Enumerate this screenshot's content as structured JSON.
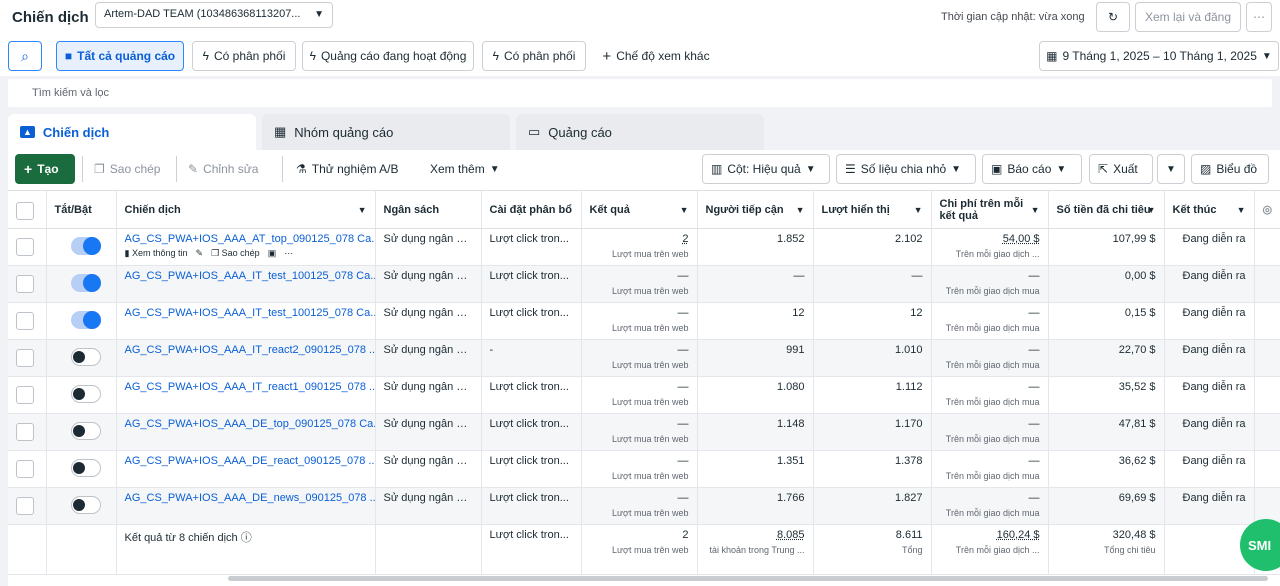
{
  "header": {
    "title": "Chiến dịch",
    "account": "Artem-DAD TEAM (103486368113207...",
    "updated": "Thời gian cập nhật: vừa xong",
    "review_label": "Xem lại và đăng"
  },
  "filters": {
    "all_ads": "Tất cả quảng cáo",
    "has_delivery_1": "Có phân phối",
    "active_ads": "Quảng cáo đang hoạt động",
    "has_delivery_2": "Có phân phối",
    "other_views": "Chế độ xem khác",
    "date_range": "9 Tháng 1, 2025 – 10 Tháng 1, 2025"
  },
  "search": {
    "placeholder": "Tìm kiếm và lọc"
  },
  "tabs": [
    {
      "label": "Chiến dịch"
    },
    {
      "label": "Nhóm quảng cáo"
    },
    {
      "label": "Quảng cáo"
    }
  ],
  "toolbar": {
    "create": "Tạo",
    "duplicate": "Sao chép",
    "edit": "Chỉnh sửa",
    "ab_test": "Thử nghiệm A/B",
    "more": "Xem thêm",
    "columns": "Cột: Hiệu quả",
    "breakdown": "Số liệu chia nhỏ",
    "reports": "Báo cáo",
    "export": "Xuất",
    "chart": "Biểu đồ"
  },
  "columns": [
    "Tắt/Bật",
    "Chiến dịch",
    "Ngân sách",
    "Cài đặt phân bổ",
    "Kết quả",
    "Người tiếp cận",
    "Lượt hiển thị",
    "Chi phí trên mỗi kết quả",
    "Số tiền đã chi tiêu",
    "Kết thúc"
  ],
  "row_actions": {
    "view": "Xem thông tin",
    "copy": "Sao chép"
  },
  "rows": [
    {
      "on": true,
      "name": "AG_CS_PWA+IOS_AAA_AT_top_090125_078 Ca...",
      "budget": "Sử dụng ngân sá...",
      "bid": "Lượt click tron...",
      "result": "2",
      "result_sub": "Lượt mua trên web",
      "reach": "1.852",
      "impr": "2.102",
      "cpr": "54,00 $",
      "cpr_sub": "Trên mỗi giao dịch ...",
      "spent": "107,99 $",
      "end": "Đang diễn ra"
    },
    {
      "on": true,
      "name": "AG_CS_PWA+IOS_AAA_IT_test_100125_078 Ca...",
      "budget": "Sử dụng ngân sá...",
      "bid": "Lượt click tron...",
      "result": "—",
      "result_sub": "Lượt mua trên web",
      "reach": "—",
      "impr": "—",
      "cpr": "—",
      "cpr_sub": "Trên mỗi giao dịch mua",
      "spent": "0,00 $",
      "end": "Đang diễn ra"
    },
    {
      "on": true,
      "name": "AG_CS_PWA+IOS_AAA_IT_test_100125_078 Ca...",
      "budget": "Sử dụng ngân sá...",
      "bid": "Lượt click tron...",
      "result": "—",
      "result_sub": "Lượt mua trên web",
      "reach": "12",
      "impr": "12",
      "cpr": "—",
      "cpr_sub": "Trên mỗi giao dịch mua",
      "spent": "0,15 $",
      "end": "Đang diễn ra"
    },
    {
      "on": false,
      "name": "AG_CS_PWA+IOS_AAA_IT_react2_090125_078 ...",
      "budget": "Sử dụng ngân sá...",
      "bid": "-",
      "result": "—",
      "result_sub": "Lượt mua trên web",
      "reach": "991",
      "impr": "1.010",
      "cpr": "—",
      "cpr_sub": "Trên mỗi giao dịch mua",
      "spent": "22,70 $",
      "end": "Đang diễn ra"
    },
    {
      "on": false,
      "name": "AG_CS_PWA+IOS_AAA_IT_react1_090125_078 ...",
      "budget": "Sử dụng ngân sá...",
      "bid": "Lượt click tron...",
      "result": "—",
      "result_sub": "Lượt mua trên web",
      "reach": "1.080",
      "impr": "1.112",
      "cpr": "—",
      "cpr_sub": "Trên mỗi giao dịch mua",
      "spent": "35,52 $",
      "end": "Đang diễn ra"
    },
    {
      "on": false,
      "name": "AG_CS_PWA+IOS_AAA_DE_top_090125_078 Ca...",
      "budget": "Sử dụng ngân sá...",
      "bid": "Lượt click tron...",
      "result": "—",
      "result_sub": "Lượt mua trên web",
      "reach": "1.148",
      "impr": "1.170",
      "cpr": "—",
      "cpr_sub": "Trên mỗi giao dịch mua",
      "spent": "47,81 $",
      "end": "Đang diễn ra"
    },
    {
      "on": false,
      "name": "AG_CS_PWA+IOS_AAA_DE_react_090125_078 ...",
      "budget": "Sử dụng ngân sá...",
      "bid": "Lượt click tron...",
      "result": "—",
      "result_sub": "Lượt mua trên web",
      "reach": "1.351",
      "impr": "1.378",
      "cpr": "—",
      "cpr_sub": "Trên mỗi giao dịch mua",
      "spent": "36,62 $",
      "end": "Đang diễn ra"
    },
    {
      "on": false,
      "name": "AG_CS_PWA+IOS_AAA_DE_news_090125_078 ...",
      "budget": "Sử dụng ngân sá...",
      "bid": "Lượt click tron...",
      "result": "—",
      "result_sub": "Lượt mua trên web",
      "reach": "1.766",
      "impr": "1.827",
      "cpr": "—",
      "cpr_sub": "Trên mỗi giao dịch mua",
      "spent": "69,69 $",
      "end": "Đang diễn ra"
    }
  ],
  "totals": {
    "label": "Kết quả từ 8 chiến dịch",
    "bid": "Lượt click tron...",
    "result": "2",
    "result_sub": "Lượt mua trên web",
    "reach": "8.085",
    "reach_sub": "tài khoản trong Trung ...",
    "impr": "8.611",
    "impr_sub": "Tổng",
    "cpr": "160,24 $",
    "cpr_sub": "Trên mỗi giao dịch ...",
    "spent": "320,48 $",
    "spent_sub": "Tổng chi tiêu"
  },
  "fab": {
    "label": "SMI"
  },
  "colors": {
    "primary": "#1877f2",
    "create_green": "#1a6b3e",
    "fab": "#1fbf6e"
  }
}
